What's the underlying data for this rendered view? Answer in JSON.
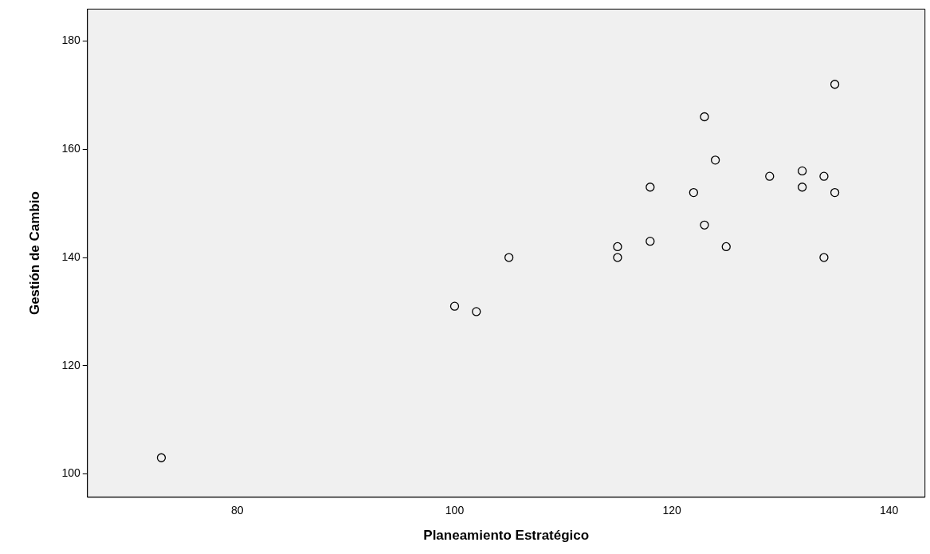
{
  "chart_data": {
    "type": "scatter",
    "xlabel": "Planeamiento Estratégico",
    "ylabel": "Gestión de Cambio",
    "x": [
      73,
      100,
      102,
      105,
      115,
      115,
      118,
      118,
      122,
      123,
      124,
      123,
      125,
      129,
      132,
      132,
      134,
      134,
      135,
      135
    ],
    "values": [
      103,
      131,
      130,
      140,
      142,
      140,
      153,
      143,
      152,
      166,
      158,
      146,
      142,
      155,
      156,
      153,
      155,
      140,
      152,
      172
    ],
    "color": "#000000",
    "marker": "circle",
    "grid": false,
    "legend": false,
    "xlim": [
      66.2,
      143.3
    ],
    "xticks": [
      80,
      100,
      120,
      140
    ],
    "ylim": [
      95.7,
      185.9
    ],
    "yticks": [
      100,
      120,
      140,
      160,
      180
    ]
  }
}
